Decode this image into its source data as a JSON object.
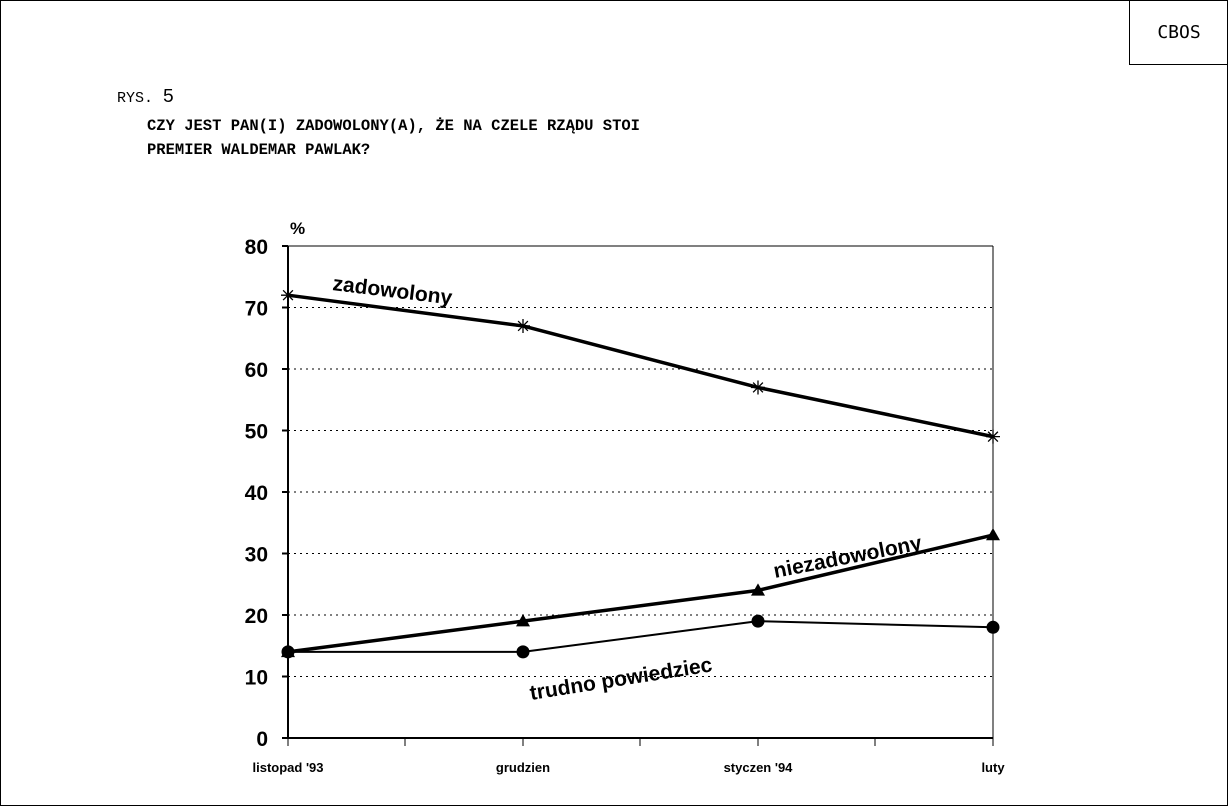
{
  "header": {
    "badge": "CBOS",
    "figure_prefix": "RYS.",
    "figure_number": "5",
    "question_line1": "CZY JEST PAN(I) ZADOWOLONY(A), ŻE NA CZELE RZĄDU STOI",
    "question_line2": "PREMIER WALDEMAR PAWLAK?"
  },
  "chart_data": {
    "type": "line",
    "unit_label": "%",
    "categories": [
      "listopad '93",
      "grudzien",
      "styczen '94",
      "luty"
    ],
    "ylim": [
      0,
      80
    ],
    "yticks": [
      0,
      10,
      20,
      30,
      40,
      50,
      60,
      70,
      80
    ],
    "grid": "horizontal dotted",
    "series": [
      {
        "name": "zadowolony",
        "marker": "asterisk",
        "values": [
          72,
          67,
          57,
          49
        ]
      },
      {
        "name": "niezadowolony",
        "marker": "triangle",
        "values": [
          14,
          19,
          24,
          33
        ]
      },
      {
        "name": "trudno powiedziec",
        "marker": "circle",
        "values": [
          14,
          14,
          19,
          18
        ]
      }
    ]
  }
}
